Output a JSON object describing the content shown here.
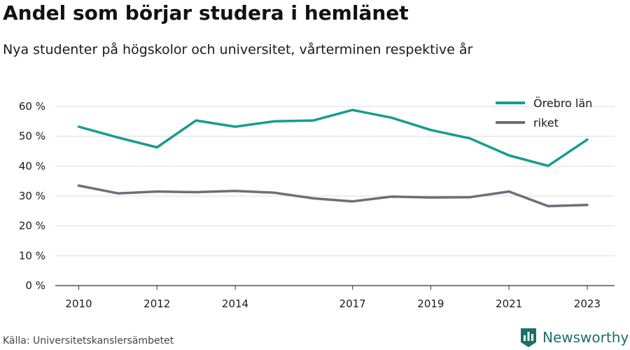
{
  "title": "Andel som börjar studera i hemlänet",
  "subtitle": "Nya studenter på högskolor och universitet, vårterminen respektive år",
  "source": "Källa: Universitetskanslersämbetet",
  "brand": {
    "name": "Newsworthy",
    "logo_icon": "bar-chart-flag-icon",
    "color": "#1d6f68"
  },
  "chart_data": {
    "type": "line",
    "x": [
      2010,
      2011,
      2012,
      2013,
      2014,
      2015,
      2016,
      2017,
      2018,
      2019,
      2020,
      2021,
      2022,
      2023
    ],
    "x_ticks": [
      2010,
      2012,
      2014,
      2017,
      2019,
      2021,
      2023
    ],
    "xlim": [
      2009.4,
      2023.7
    ],
    "ylim": [
      0,
      60
    ],
    "y_ticks": [
      0,
      10,
      20,
      30,
      40,
      50,
      60
    ],
    "y_tick_labels": [
      "0 %",
      "10 %",
      "20 %",
      "30 %",
      "40 %",
      "50 %",
      "60 %"
    ],
    "grid": true,
    "legend_position": "top-right",
    "series": [
      {
        "name": "Örebro län",
        "color": "#169c92",
        "values": [
          53.2,
          49.6,
          46.3,
          55.3,
          53.2,
          55.0,
          55.3,
          58.8,
          56.2,
          52.1,
          49.3,
          43.6,
          40.1,
          48.9
        ]
      },
      {
        "name": "riket",
        "color": "#6f6d76",
        "values": [
          33.5,
          30.9,
          31.5,
          31.3,
          31.7,
          31.1,
          29.2,
          28.2,
          29.8,
          29.5,
          29.6,
          31.5,
          26.6,
          27.0
        ]
      }
    ]
  }
}
